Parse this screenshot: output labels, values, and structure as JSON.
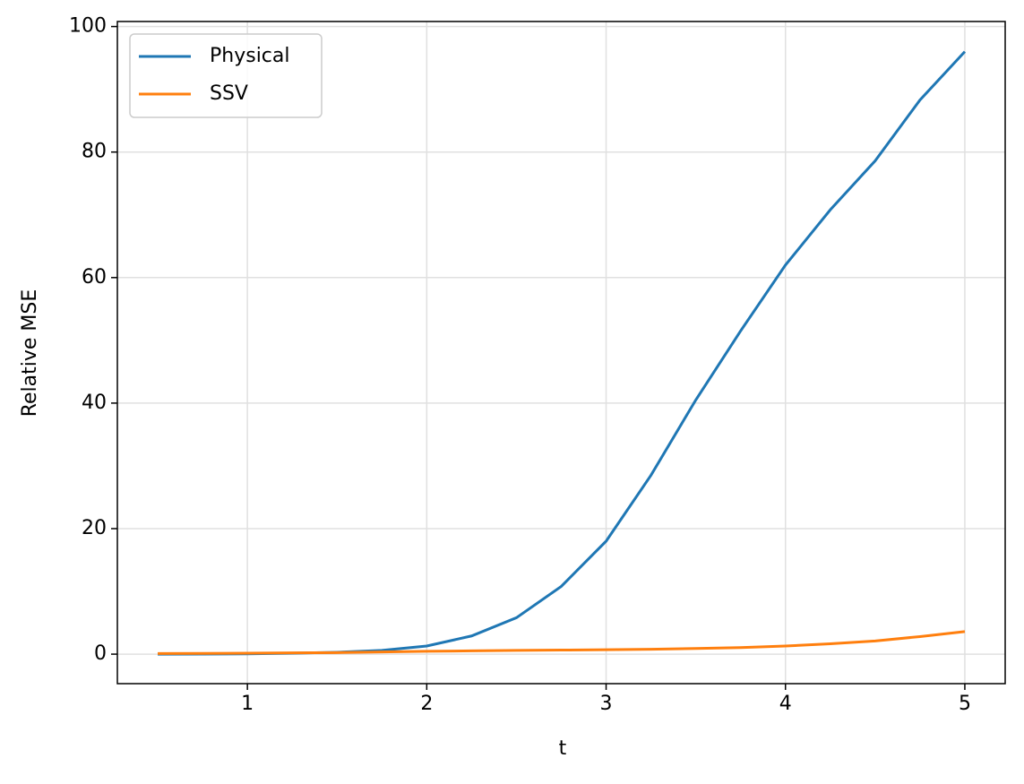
{
  "chart_data": {
    "type": "line",
    "x_label": "t",
    "y_label": "Relative MSE",
    "x": [
      0.5,
      0.75,
      1,
      1.25,
      1.5,
      1.75,
      2,
      2.25,
      2.5,
      2.75,
      3,
      3.25,
      3.5,
      3.75,
      4,
      4.25,
      4.5,
      4.75,
      5
    ],
    "series": [
      {
        "name": "Physical",
        "color": "#1f77b4",
        "values": [
          0,
          0.02,
          0.05,
          0.15,
          0.3,
          0.6,
          1.3,
          2.9,
          5.8,
          10.8,
          18,
          28.5,
          40.5,
          51.5,
          62,
          70.8,
          78.6,
          88.3,
          96
        ]
      },
      {
        "name": "SSV",
        "color": "#ff7f0e",
        "values": [
          0.1,
          0.12,
          0.15,
          0.2,
          0.25,
          0.35,
          0.45,
          0.52,
          0.6,
          0.65,
          0.7,
          0.78,
          0.9,
          1.05,
          1.3,
          1.65,
          2.1,
          2.8,
          3.6
        ]
      }
    ],
    "xlim": [
      0.275,
      5.225
    ],
    "xticks": [
      1,
      2,
      3,
      4,
      5
    ],
    "ylim": [
      -4.7,
      100.8
    ],
    "yticks": [
      0,
      20,
      40,
      60,
      80,
      100
    ],
    "grid": true,
    "legend": "upper-left"
  }
}
